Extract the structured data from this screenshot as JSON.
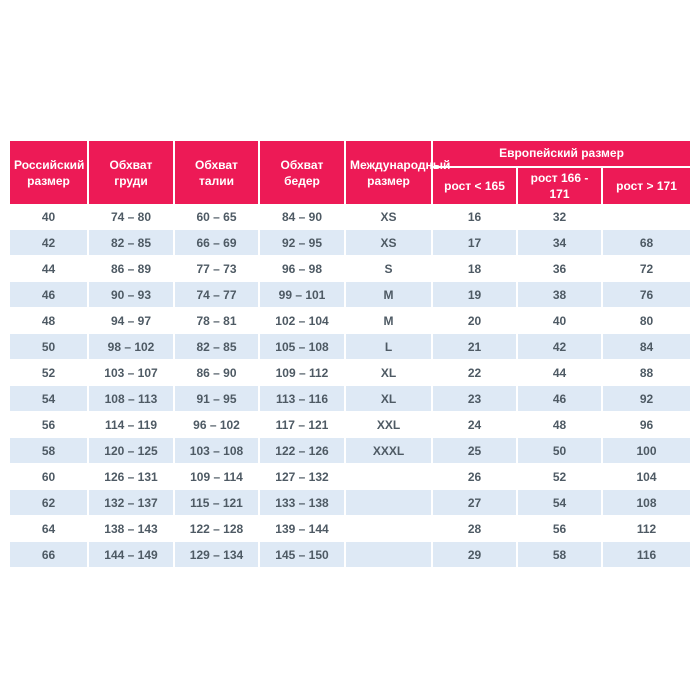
{
  "chart_data": {
    "type": "table",
    "header": {
      "russian_size": "Российский размер",
      "chest": "Обхват груди",
      "waist": "Обхват талии",
      "hips": "Обхват бедер",
      "international_size": "Международный размер",
      "european_size_group": "Европейский размер",
      "height_lt_165": "рост < 165",
      "height_166_171": "рост 166 - 171",
      "height_gt_171": "рост > 171"
    },
    "rows": [
      [
        "40",
        "74 – 80",
        "60 – 65",
        "84 – 90",
        "XS",
        "16",
        "32",
        ""
      ],
      [
        "42",
        "82 – 85",
        "66 – 69",
        "92 – 95",
        "XS",
        "17",
        "34",
        "68"
      ],
      [
        "44",
        "86 – 89",
        "77 – 73",
        "96 – 98",
        "S",
        "18",
        "36",
        "72"
      ],
      [
        "46",
        "90 – 93",
        "74 – 77",
        "99 – 101",
        "M",
        "19",
        "38",
        "76"
      ],
      [
        "48",
        "94 – 97",
        "78 – 81",
        "102 – 104",
        "M",
        "20",
        "40",
        "80"
      ],
      [
        "50",
        "98 – 102",
        "82 – 85",
        "105 – 108",
        "L",
        "21",
        "42",
        "84"
      ],
      [
        "52",
        "103 – 107",
        "86 – 90",
        "109 – 112",
        "XL",
        "22",
        "44",
        "88"
      ],
      [
        "54",
        "108 – 113",
        "91 – 95",
        "113 – 116",
        "XL",
        "23",
        "46",
        "92"
      ],
      [
        "56",
        "114 – 119",
        "96 – 102",
        "117 – 121",
        "XXL",
        "24",
        "48",
        "96"
      ],
      [
        "58",
        "120 – 125",
        "103 – 108",
        "122 – 126",
        "XXXL",
        "25",
        "50",
        "100"
      ],
      [
        "60",
        "126 – 131",
        "109 – 114",
        "127 – 132",
        "",
        "26",
        "52",
        "104"
      ],
      [
        "62",
        "132 – 137",
        "115 – 121",
        "133 – 138",
        "",
        "27",
        "54",
        "108"
      ],
      [
        "64",
        "138 – 143",
        "122 – 128",
        "139 – 144",
        "",
        "28",
        "56",
        "112"
      ],
      [
        "66",
        "144 – 149",
        "129 – 134",
        "145 – 150",
        "",
        "29",
        "58",
        "116"
      ]
    ]
  },
  "colors": {
    "header_bg": "#ED1A56",
    "header_text": "#FFFFFF",
    "row_bg": "#FFFFFF",
    "row_alt_bg": "#DEE9F5",
    "cell_text": "#4E5A64"
  }
}
